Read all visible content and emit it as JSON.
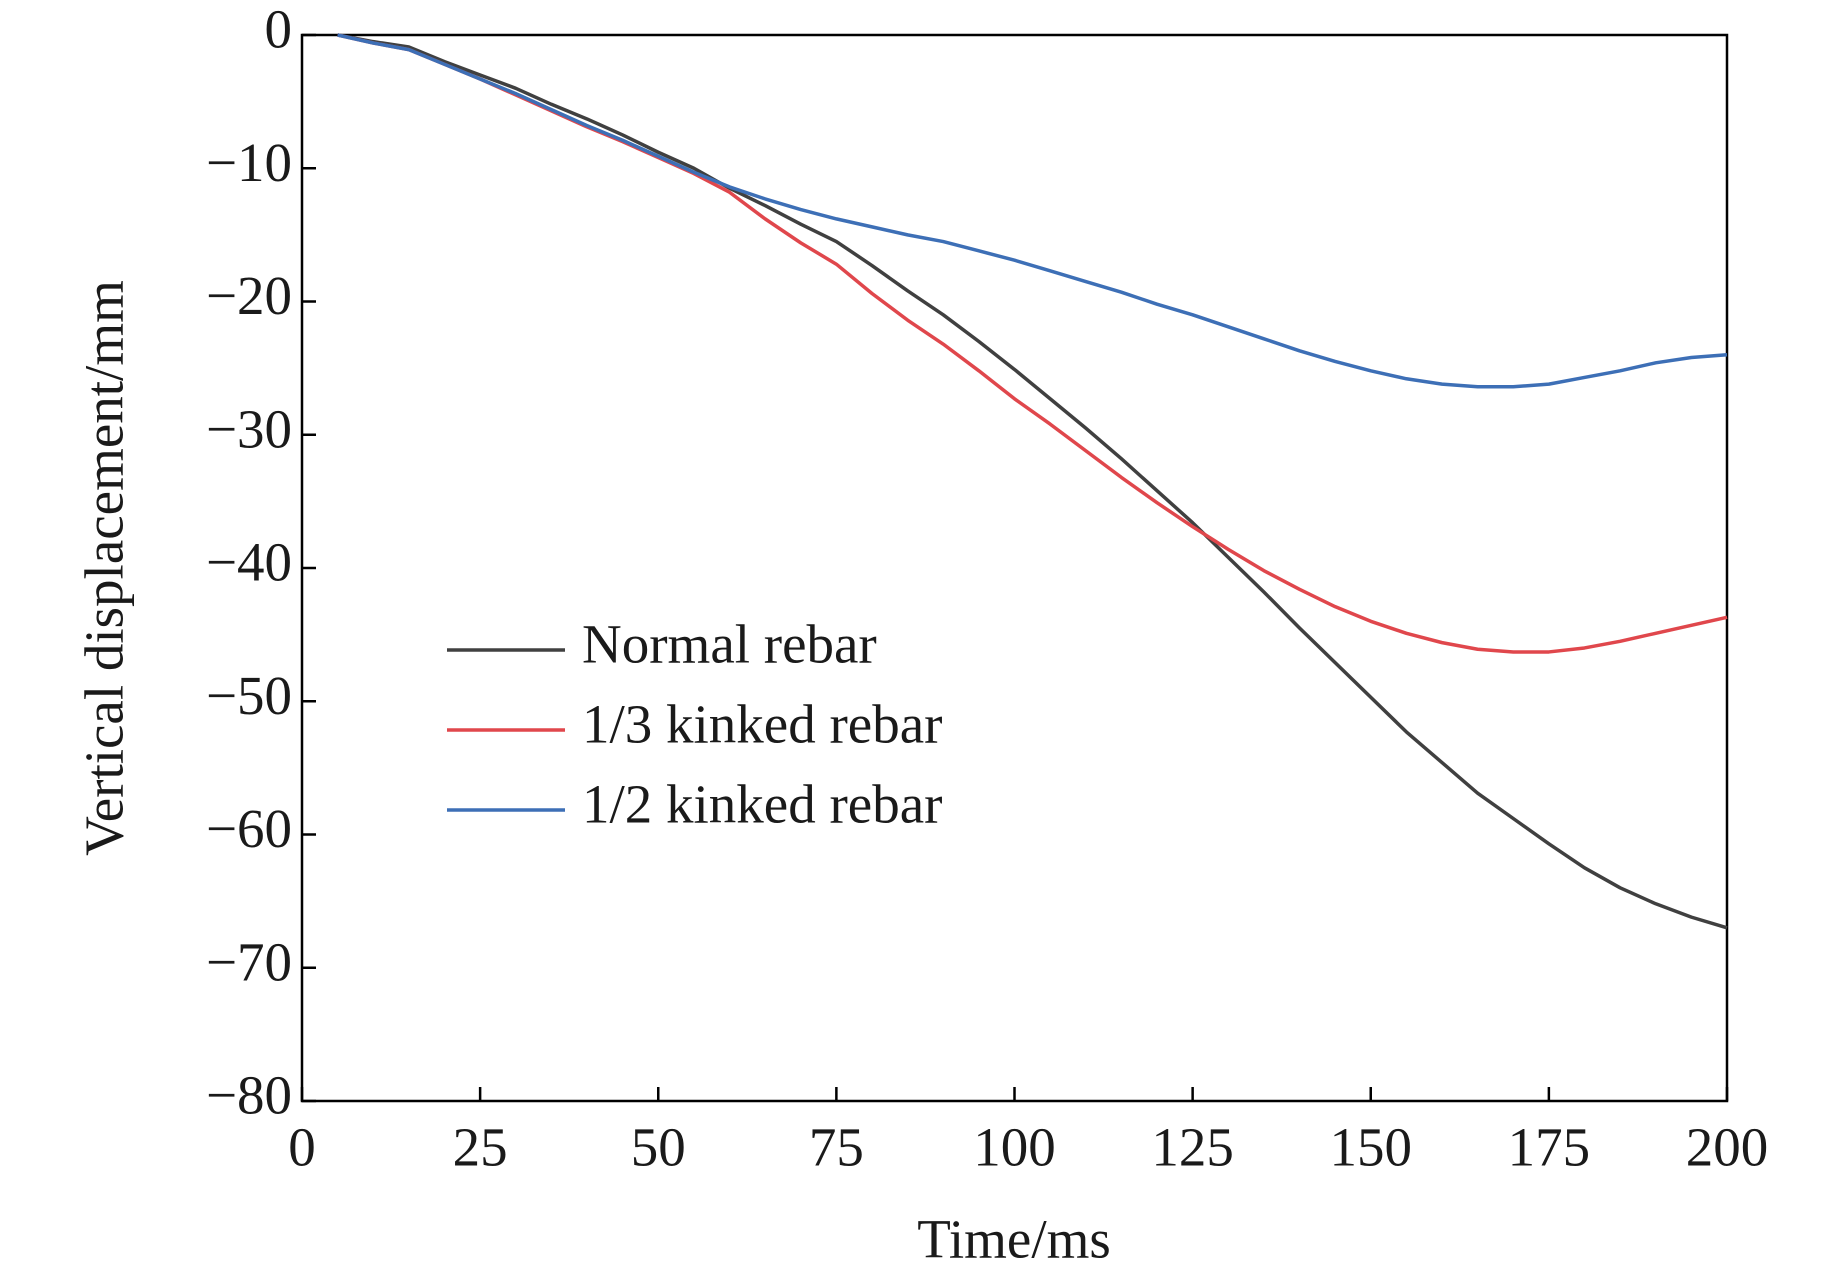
{
  "chart_data": {
    "type": "line",
    "xlabel": "Time/ms",
    "ylabel": "Vertical displacement/mm",
    "x": [
      5,
      10,
      15,
      20,
      25,
      30,
      35,
      40,
      45,
      50,
      55,
      60,
      65,
      70,
      75,
      80,
      85,
      90,
      95,
      100,
      105,
      110,
      115,
      120,
      125,
      130,
      135,
      140,
      145,
      150,
      155,
      160,
      165,
      170,
      175,
      180,
      185,
      190,
      195,
      200
    ],
    "series": [
      {
        "name": "Normal rebar",
        "color": "#404040",
        "values": [
          0,
          -0.5,
          -0.9,
          -2.0,
          -3.0,
          -4.0,
          -5.2,
          -6.3,
          -7.5,
          -8.8,
          -10.0,
          -11.5,
          -12.8,
          -14.2,
          -15.5,
          -17.3,
          -19.2,
          -21.0,
          -23.0,
          -25.1,
          -27.3,
          -29.5,
          -31.8,
          -34.2,
          -36.6,
          -39.2,
          -41.8,
          -44.5,
          -47.1,
          -49.7,
          -52.3,
          -54.6,
          -56.9,
          -58.8,
          -60.7,
          -62.5,
          -64.0,
          -65.2,
          -66.2,
          -67.0
        ]
      },
      {
        "name": "1/3 kinked rebar",
        "color": "#e0474c",
        "values": [
          0,
          -0.6,
          -1.1,
          -2.2,
          -3.3,
          -4.5,
          -5.7,
          -6.9,
          -8.0,
          -9.2,
          -10.4,
          -11.8,
          -13.8,
          -15.6,
          -17.2,
          -19.4,
          -21.4,
          -23.2,
          -25.2,
          -27.3,
          -29.2,
          -31.2,
          -33.2,
          -35.1,
          -36.9,
          -38.6,
          -40.2,
          -41.6,
          -42.9,
          -44.0,
          -44.9,
          -45.6,
          -46.1,
          -46.3,
          -46.3,
          -46.0,
          -45.5,
          -44.9,
          -44.3,
          -43.7
        ]
      },
      {
        "name": "1/2 kinked rebar",
        "color": "#3d6fb6",
        "values": [
          0,
          -0.6,
          -1.1,
          -2.2,
          -3.3,
          -4.4,
          -5.6,
          -6.8,
          -7.9,
          -9.1,
          -10.3,
          -11.4,
          -12.3,
          -13.1,
          -13.8,
          -14.4,
          -15.0,
          -15.5,
          -16.2,
          -16.9,
          -17.7,
          -18.5,
          -19.3,
          -20.2,
          -21.0,
          -21.9,
          -22.8,
          -23.7,
          -24.5,
          -25.2,
          -25.8,
          -26.2,
          -26.4,
          -26.4,
          -26.2,
          -25.7,
          -25.2,
          -24.6,
          -24.2,
          -24.0
        ]
      }
    ],
    "xlim": [
      0,
      200
    ],
    "xticks": [
      0,
      25,
      50,
      75,
      100,
      125,
      150,
      175,
      200
    ],
    "ylim": [
      -80,
      0
    ],
    "yticks": [
      {
        "value": -80,
        "label": "−80"
      },
      {
        "value": -70,
        "label": "−70"
      },
      {
        "value": -60,
        "label": "−60"
      },
      {
        "value": -50,
        "label": "−50"
      },
      {
        "value": -40,
        "label": "−40"
      },
      {
        "value": -30,
        "label": "−30"
      },
      {
        "value": -20,
        "label": "−20"
      },
      {
        "value": -10,
        "label": "−10"
      },
      0
    ],
    "grid": false,
    "legend": "center-left"
  }
}
